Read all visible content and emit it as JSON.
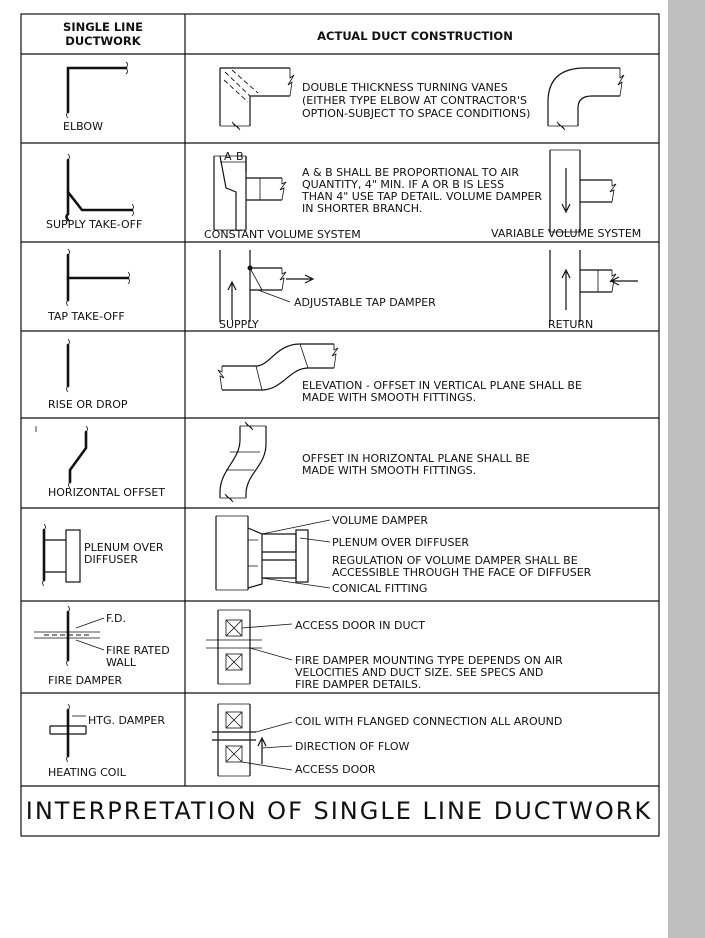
{
  "header": {
    "col1_line1": "SINGLE LINE",
    "col1_line2": "DUCTWORK",
    "col2": "ACTUAL DUCT CONSTRUCTION"
  },
  "rows": {
    "elbow": {
      "label": "ELBOW",
      "note": [
        "DOUBLE THICKNESS TURNING VANES",
        "(EITHER TYPE ELBOW AT CONTRACTOR'S",
        "OPTION-SUBJECT TO SPACE CONDITIONS)"
      ]
    },
    "supply": {
      "label": "SUPPLY TAKE-OFF",
      "note": [
        "A & B SHALL BE PROPORTIONAL TO AIR",
        "QUANTITY, 4\" MIN. IF A OR B IS LESS",
        "THAN 4\" USE TAP DETAIL. VOLUME DAMPER",
        "IN SHORTER BRANCH."
      ],
      "left_caption": "CONSTANT VOLUME SYSTEM",
      "right_caption": "VARIABLE VOLUME SYSTEM",
      "a": "A",
      "b": "B"
    },
    "tap": {
      "label": "TAP TAKE-OFF",
      "note": "ADJUSTABLE TAP DAMPER",
      "left_caption": "SUPPLY",
      "right_caption": "RETURN"
    },
    "rise": {
      "label": "RISE OR DROP",
      "note": [
        "ELEVATION - OFFSET IN VERTICAL PLANE SHALL BE",
        "MADE WITH SMOOTH FITTINGS."
      ]
    },
    "offset": {
      "label": "HORIZONTAL OFFSET",
      "note": [
        "OFFSET IN HORIZONTAL PLANE SHALL BE",
        "MADE WITH SMOOTH FITTINGS."
      ]
    },
    "plenum": {
      "label": [
        "PLENUM OVER",
        "DIFFUSER"
      ],
      "notes": [
        "VOLUME DAMPER",
        "PLENUM OVER DIFFUSER",
        "REGULATION OF VOLUME DAMPER SHALL BE",
        "ACCESSIBLE THROUGH THE FACE OF DIFFUSER",
        "CONICAL FITTING"
      ]
    },
    "fire": {
      "label": "FIRE DAMPER",
      "fd": "F.D.",
      "wall": [
        "FIRE RATED",
        "WALL"
      ],
      "notes": [
        "ACCESS DOOR IN DUCT",
        "FIRE DAMPER MOUNTING TYPE DEPENDS ON AIR",
        "VELOCITIES AND DUCT SIZE. SEE SPECS AND",
        "FIRE DAMPER DETAILS."
      ]
    },
    "coil": {
      "label": "HEATING COIL",
      "damper": "HTG. DAMPER",
      "notes": [
        "COIL WITH FLANGED CONNECTION ALL AROUND",
        "DIRECTION OF FLOW",
        "ACCESS DOOR"
      ]
    }
  },
  "footer": {
    "title": "INTERPRETATION  OF  SINGLE  LINE  DUCTWORK"
  }
}
